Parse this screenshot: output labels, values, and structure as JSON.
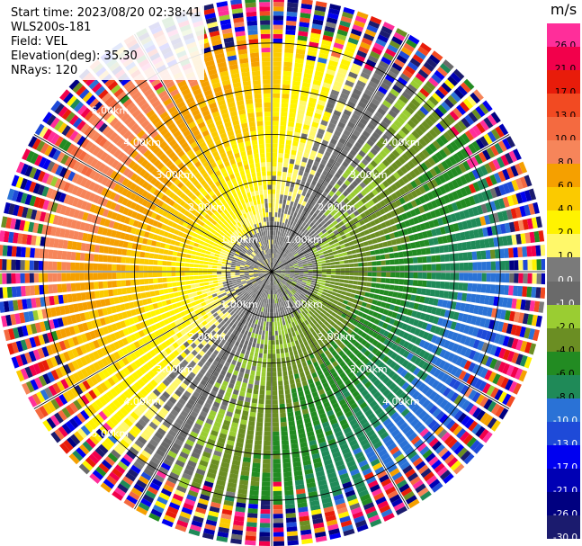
{
  "header": {
    "start_time": "Start time: 2023/08/20 02:38:41",
    "station": "WLS200s-181",
    "field": "Field: VEL",
    "elevation": "Elevation(deg): 35.30",
    "nrays": "NRays: 120"
  },
  "colorbar": {
    "unit": "m/s",
    "bins": [
      {
        "label": "26.0",
        "color": "#ff2e9a"
      },
      {
        "label": "21.0",
        "color": "#f2004b"
      },
      {
        "label": "17.0",
        "color": "#e81c0a"
      },
      {
        "label": "13.0",
        "color": "#f24a22"
      },
      {
        "label": "10.0",
        "color": "#f46a40"
      },
      {
        "label": "8.0",
        "color": "#f6855a"
      },
      {
        "label": "6.0",
        "color": "#f5a000"
      },
      {
        "label": "4.0",
        "color": "#fbca00"
      },
      {
        "label": "2.0",
        "color": "#fff300"
      },
      {
        "label": "1.0",
        "color": "#fff86a"
      },
      {
        "label": "0.0",
        "color": "#7a7a7a"
      },
      {
        "label": "-1.0",
        "color": "#6a6a6a"
      },
      {
        "label": "-2.0",
        "color": "#9acd32"
      },
      {
        "label": "-4.0",
        "color": "#6b8e23"
      },
      {
        "label": "-6.0",
        "color": "#228b22"
      },
      {
        "label": "-8.0",
        "color": "#1f8a58"
      },
      {
        "label": "-10.0",
        "color": "#2a72d6"
      },
      {
        "label": "-13.0",
        "color": "#1e4ad8"
      },
      {
        "label": "-17.0",
        "color": "#0000f0"
      },
      {
        "label": "-21.0",
        "color": "#0000b4"
      },
      {
        "label": "-26.0",
        "color": "#000080"
      },
      {
        "label": "-30.0",
        "color": "#1b1b6e"
      }
    ]
  },
  "chart_data": {
    "type": "heatmap",
    "projection": "polar PPI (plan position indicator)",
    "title": "Start time: 2023/08/20 02:38:41",
    "field": "VEL",
    "units": "m/s",
    "elevation_deg": 35.3,
    "nrays": 120,
    "range_rings_km": [
      1.0,
      2.0,
      3.0,
      4.0,
      5.0
    ],
    "ring_labels": [
      "1.00km",
      "2.00km",
      "3.00km",
      "4.00km",
      "5.00km"
    ],
    "max_range_km": 6.0,
    "spokes_deg": [
      0,
      30,
      60,
      90,
      120,
      150,
      180,
      210,
      240,
      270,
      300,
      330
    ],
    "velocity_pattern": {
      "positive_toward_azimuth_deg": 300,
      "near_range_max_m_s": 2,
      "far_range_max_m_s": 10,
      "description": "Dipole radial velocity pattern: positive (yellow to red) in the west/northwest, negative (green to blue) in the east/southeast; near-zero grey speckle within ~1 km and along the zero-velocity line; noisy multicolour outer rim."
    }
  }
}
